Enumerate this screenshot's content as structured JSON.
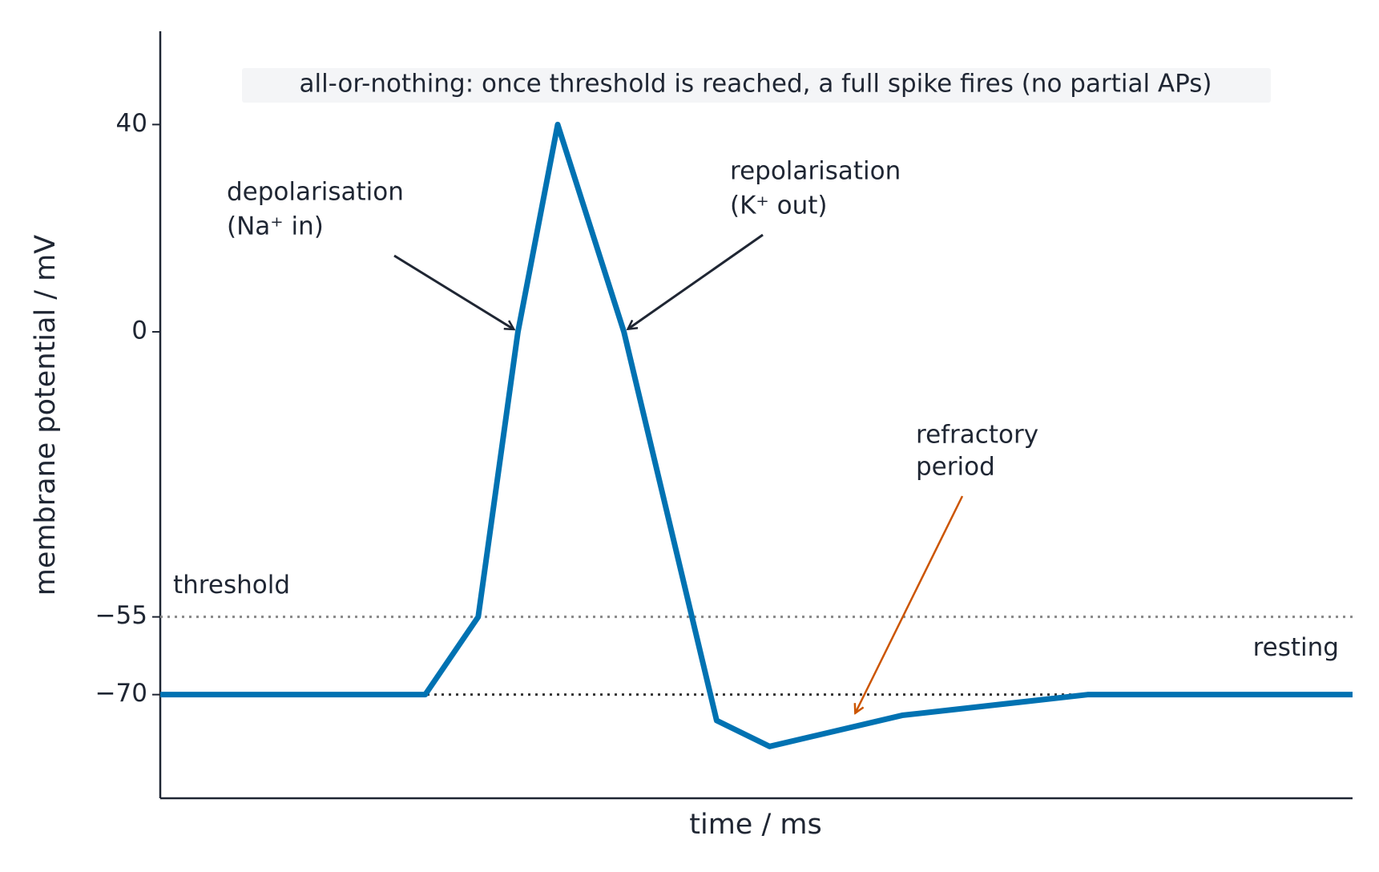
{
  "chart_data": {
    "type": "line",
    "title": "all-or-nothing: once threshold is reached, a full spike fires (no partial APs)",
    "x_label": "time / ms",
    "y_label": "membrane potential / mV",
    "x": [
      0,
      2,
      2.4,
      2.7,
      3,
      3.5,
      4.2,
      4.6,
      5.6,
      7,
      9
    ],
    "series": [
      {
        "name": null,
        "color": "#0072b2",
        "values": [
          -70,
          -70,
          -55,
          0,
          40,
          0,
          -75,
          -80,
          -74,
          -70,
          -70
        ]
      }
    ],
    "xlim": [
      0,
      9
    ],
    "ylim": [
      -90,
      58
    ],
    "yticks": [
      40,
      0,
      {
        "value": -55,
        "label": "−55"
      },
      {
        "value": -70,
        "label": "−70"
      }
    ],
    "reference_lines": [
      {
        "value": -55,
        "label": "threshold",
        "color": "#888888"
      },
      {
        "value": -70,
        "label": "resting",
        "color": "#333333"
      }
    ],
    "annotations": [
      {
        "text": [
          "depolarisation",
          "(Na⁺ in)"
        ],
        "xy": [
          2.7,
          0
        ],
        "color": "#1f2633"
      },
      {
        "text": [
          "repolarisation",
          "(K⁺ out)"
        ],
        "xy": [
          3.5,
          0
        ],
        "color": "#1f2633"
      },
      {
        "text": [
          "refractory",
          "period"
        ],
        "xy": [
          5.23,
          -74.4
        ],
        "color": "#cc5500"
      }
    ]
  }
}
